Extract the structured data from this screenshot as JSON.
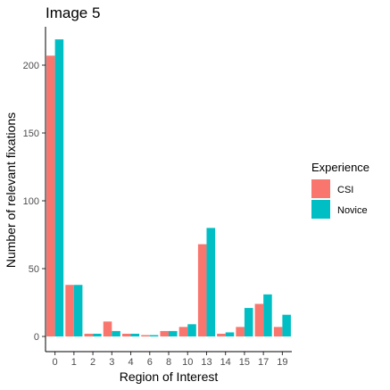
{
  "chart_data": {
    "type": "bar",
    "title": "Image 5",
    "xlabel": "Region of Interest",
    "ylabel": "Number of relevant fixations",
    "categories": [
      "0",
      "1",
      "2",
      "3",
      "4",
      "6",
      "8",
      "10",
      "13",
      "14",
      "15",
      "17",
      "19"
    ],
    "ylim": [
      0,
      230
    ],
    "yticks": [
      0,
      50,
      100,
      150,
      200
    ],
    "grid": false,
    "legend": {
      "title": "Experience",
      "placement": "right"
    },
    "series": [
      {
        "name": "CSI",
        "color": "#F8766D",
        "values": [
          207,
          38,
          2,
          11,
          2,
          1,
          4,
          7,
          68,
          2,
          7,
          24,
          7
        ]
      },
      {
        "name": "Novice",
        "color": "#00BFC4",
        "values": [
          219,
          38,
          2,
          4,
          2,
          1,
          4,
          9,
          80,
          3,
          21,
          31,
          16
        ]
      }
    ]
  }
}
